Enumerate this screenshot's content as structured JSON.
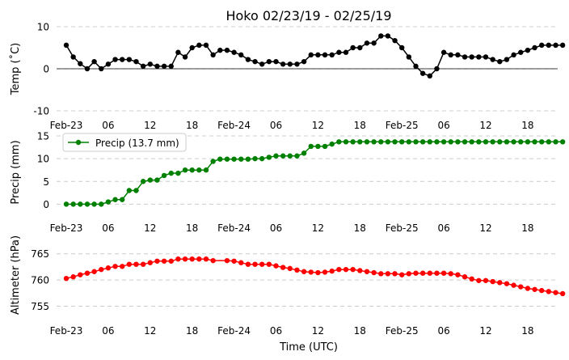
{
  "title": "Hoko 02/23/19 - 02/25/19",
  "xlabel": "Time (UTC)",
  "x_tick_labels": [
    "Feb-23",
    "06",
    "12",
    "18",
    "Feb-24",
    "06",
    "12",
    "18",
    "Feb-25",
    "06",
    "12",
    "18"
  ],
  "chart_data": [
    {
      "type": "line",
      "ylabel": "Temp ($^\\circ$C)",
      "ylabel_text": "Temp (˚C)",
      "ylim": [
        -10,
        10
      ],
      "yticks": [
        -10,
        0,
        10
      ],
      "grid": true,
      "zero_line": true,
      "color": "#000000",
      "x": [
        0,
        1,
        2,
        3,
        4,
        5,
        6,
        7,
        8,
        9,
        10,
        11,
        12,
        13,
        14,
        15,
        16,
        17,
        18,
        19,
        20,
        21,
        22,
        23,
        24,
        25,
        26,
        27,
        28,
        29,
        30,
        31,
        32,
        33,
        34,
        35,
        36,
        37,
        38,
        39,
        40,
        41,
        42,
        43,
        44,
        45,
        46,
        47,
        48,
        49,
        50,
        51,
        52,
        53,
        54,
        55,
        56,
        57,
        58,
        59,
        60,
        61,
        62,
        63,
        64,
        65,
        66,
        67,
        68,
        69,
        70,
        71
      ],
      "values": [
        5.6,
        2.8,
        1.2,
        0.0,
        1.7,
        0.0,
        1.1,
        2.2,
        2.2,
        2.2,
        1.7,
        0.6,
        1.1,
        0.6,
        0.6,
        0.6,
        3.9,
        2.8,
        5.0,
        5.6,
        5.6,
        3.3,
        4.4,
        4.4,
        3.9,
        3.3,
        2.2,
        1.7,
        1.1,
        1.7,
        1.7,
        1.1,
        1.1,
        1.1,
        1.7,
        3.3,
        3.3,
        3.3,
        3.3,
        3.9,
        3.9,
        5.0,
        5.0,
        6.1,
        6.1,
        7.8,
        7.8,
        6.7,
        5.0,
        2.8,
        0.6,
        -1.1,
        -1.7,
        0.0,
        3.9,
        3.3,
        3.3,
        2.8,
        2.8,
        2.8,
        2.8,
        2.2,
        1.7,
        2.2,
        3.3,
        3.9,
        4.4,
        5.0,
        5.6,
        5.6,
        5.6,
        5.6
      ]
    },
    {
      "type": "line",
      "ylabel": "Precip (mm)",
      "ylim": [
        -1,
        15
      ],
      "yticks": [
        0,
        5,
        10,
        15
      ],
      "grid": true,
      "color": "#008000",
      "legend": "Precip (13.7 mm)",
      "legend_position": "upper-left",
      "x": [
        0,
        1,
        2,
        3,
        4,
        5,
        6,
        7,
        8,
        9,
        10,
        11,
        12,
        13,
        14,
        15,
        16,
        17,
        18,
        19,
        20,
        21,
        22,
        23,
        24,
        25,
        26,
        27,
        28,
        29,
        30,
        31,
        32,
        33,
        34,
        35,
        36,
        37,
        38,
        39,
        40,
        41,
        42,
        43,
        44,
        45,
        46,
        47,
        48,
        49,
        50,
        51,
        52,
        53,
        54,
        55,
        56,
        57,
        58,
        59,
        60,
        61,
        62,
        63,
        64,
        65,
        66,
        67,
        68,
        69,
        70,
        71
      ],
      "values": [
        0.0,
        0.0,
        0.0,
        0.0,
        0.0,
        0.0,
        0.5,
        1.0,
        1.0,
        3.0,
        3.0,
        5.0,
        5.3,
        5.3,
        6.3,
        6.8,
        6.8,
        7.5,
        7.5,
        7.5,
        7.5,
        9.4,
        9.9,
        9.9,
        9.9,
        9.9,
        9.9,
        10.0,
        10.0,
        10.3,
        10.6,
        10.6,
        10.6,
        10.6,
        11.2,
        12.7,
        12.7,
        12.7,
        13.2,
        13.7,
        13.7,
        13.7,
        13.7,
        13.7,
        13.7,
        13.7,
        13.7,
        13.7,
        13.7,
        13.7,
        13.7,
        13.7,
        13.7,
        13.7,
        13.7,
        13.7,
        13.7,
        13.7,
        13.7,
        13.7,
        13.7,
        13.7,
        13.7,
        13.7,
        13.7,
        13.7,
        13.7,
        13.7,
        13.7,
        13.7,
        13.7,
        13.7
      ]
    },
    {
      "type": "line",
      "ylabel": "Altimeter (hPa)",
      "ylim": [
        754,
        766.5
      ],
      "yticks": [
        755,
        760,
        765
      ],
      "grid": true,
      "color": "#ff0000",
      "x": [
        0,
        1,
        2,
        3,
        4,
        5,
        6,
        7,
        8,
        9,
        10,
        11,
        12,
        13,
        14,
        15,
        16,
        17,
        18,
        19,
        20,
        21,
        23,
        24,
        25,
        26,
        27,
        28,
        29,
        30,
        31,
        32,
        33,
        34,
        35,
        36,
        37,
        38,
        39,
        40,
        41,
        42,
        43,
        44,
        45,
        46,
        47,
        48,
        49,
        50,
        51,
        52,
        53,
        54,
        55,
        56,
        57,
        58,
        59,
        60,
        61,
        62,
        63,
        64,
        65,
        66,
        67,
        68,
        69,
        70,
        71
      ],
      "values": [
        760.3,
        760.6,
        761.0,
        761.3,
        761.6,
        762.0,
        762.3,
        762.6,
        762.6,
        763.0,
        763.0,
        763.0,
        763.3,
        763.6,
        763.6,
        763.6,
        764.0,
        764.0,
        764.0,
        764.0,
        764.0,
        763.7,
        763.7,
        763.6,
        763.3,
        763.0,
        763.0,
        763.0,
        763.0,
        762.7,
        762.4,
        762.2,
        761.9,
        761.6,
        761.5,
        761.4,
        761.5,
        761.7,
        762.0,
        762.0,
        762.0,
        761.8,
        761.6,
        761.4,
        761.2,
        761.2,
        761.2,
        761.0,
        761.2,
        761.3,
        761.3,
        761.3,
        761.3,
        761.3,
        761.2,
        761.0,
        760.6,
        760.2,
        759.9,
        759.9,
        759.7,
        759.5,
        759.3,
        759.0,
        758.7,
        758.4,
        758.2,
        758.0,
        757.8,
        757.6,
        757.4
      ]
    }
  ]
}
